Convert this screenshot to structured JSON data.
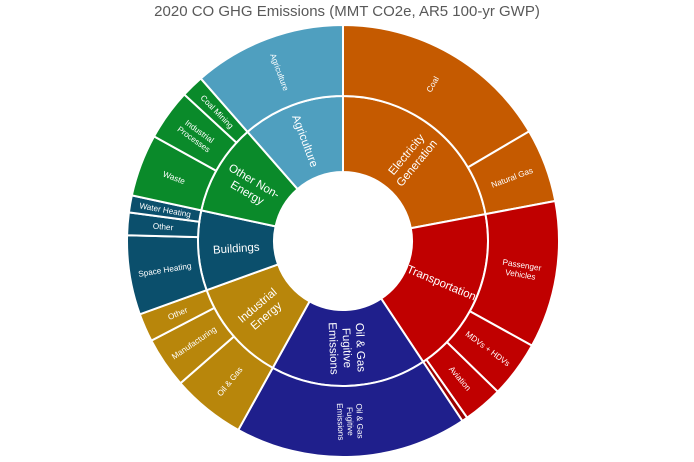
{
  "chart_data": {
    "type": "sunburst",
    "title": "2020 CO GHG Emissions (MMT CO2e, AR5 100-yr GWP)",
    "sectors": [
      {
        "name": "Electricity Generation",
        "label_lines": [
          "Electricity",
          "Generation"
        ],
        "color": "#c55a00",
        "children": [
          {
            "name": "Coal",
            "label_lines": [
              "Coal"
            ],
            "value": 19.5
          },
          {
            "name": "Natural Gas",
            "label_lines": [
              "Natural Gas"
            ],
            "value": 6.5
          }
        ]
      },
      {
        "name": "Transportation",
        "label_lines": [
          "Transportation"
        ],
        "color": "#c00000",
        "children": [
          {
            "name": "Passenger Vehicles",
            "label_lines": [
              "Passenger",
              "Vehicles"
            ],
            "value": 13.0
          },
          {
            "name": "MDVs + HDVs",
            "label_lines": [
              "MDVs + HDVs"
            ],
            "value": 5.0
          },
          {
            "name": "Aviation",
            "label_lines": [
              "Aviation"
            ],
            "value": 3.5
          },
          {
            "name": "",
            "label_lines": [],
            "value": 0.5
          }
        ]
      },
      {
        "name": "Oil & Gas Fugitive Emissions",
        "label_lines": [
          "Oil & Gas",
          "Fugitive",
          "Emissions"
        ],
        "color": "#1f1f8c",
        "children": [
          {
            "name": "Oil & Gas Fugitive Emissions",
            "label_lines": [
              "Oil & Gas",
              "Fugitive",
              "Emissions"
            ],
            "value": 20.5
          }
        ]
      },
      {
        "name": "Industrial Energy",
        "label_lines": [
          "Industrial",
          "Energy"
        ],
        "color": "#b8860b",
        "children": [
          {
            "name": "Oil & Gas",
            "label_lines": [
              "Oil & Gas"
            ],
            "value": 6.5
          },
          {
            "name": "Manufacturing",
            "label_lines": [
              "Manufacturing"
            ],
            "value": 4.5
          },
          {
            "name": "Other",
            "label_lines": [
              "Other"
            ],
            "value": 2.5
          }
        ]
      },
      {
        "name": "Buildings",
        "label_lines": [
          "Buildings"
        ],
        "color": "#0b4f6c",
        "children": [
          {
            "name": "Space Heating",
            "label_lines": [
              "Space Heating"
            ],
            "value": 7.0
          },
          {
            "name": "Other",
            "label_lines": [
              "Other"
            ],
            "value": 2.0
          },
          {
            "name": "Water Heating",
            "label_lines": [
              "Water Heating"
            ],
            "value": 1.5
          }
        ]
      },
      {
        "name": "Other Non-Energy",
        "label_lines": [
          "Other Non-",
          "Energy"
        ],
        "color": "#0a8a2a",
        "children": [
          {
            "name": "Waste",
            "label_lines": [
              "Waste"
            ],
            "value": 5.5
          },
          {
            "name": "Industrial Processes",
            "label_lines": [
              "Industrial",
              "Processes"
            ],
            "value": 4.5
          },
          {
            "name": "Coal Mining",
            "label_lines": [
              "Coal Mining"
            ],
            "value": 2.0
          }
        ]
      },
      {
        "name": "Agriculture",
        "label_lines": [
          "Agriculture"
        ],
        "color": "#4f9fbf",
        "children": [
          {
            "name": "Agriculture",
            "label_lines": [
              "Agriculture"
            ],
            "value": 13.5
          }
        ]
      }
    ]
  }
}
